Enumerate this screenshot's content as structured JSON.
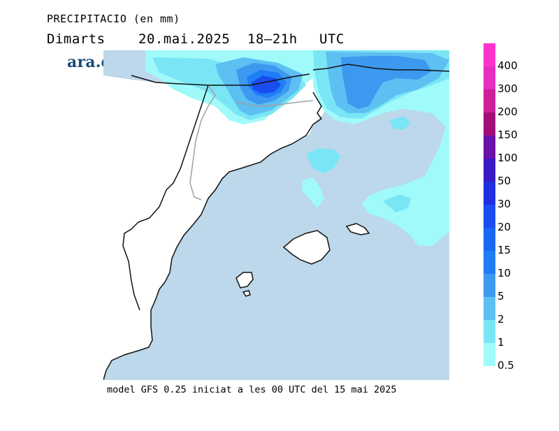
{
  "title": "PRECIPITACIO (en mm)",
  "subtitle": {
    "day": "Dimarts",
    "date": "20.mai.2025",
    "hours": "18–21h",
    "timezone": "UTC"
  },
  "logo": "ara.cat",
  "footer": "model GFS 0.25 iniciat a les 00 UTC del 15 mai 2025",
  "legend": {
    "levels": [
      {
        "label": "400",
        "color": "#ff33cc"
      },
      {
        "label": "300",
        "color": "#e62ebf"
      },
      {
        "label": "200",
        "color": "#cc1f99"
      },
      {
        "label": "150",
        "color": "#a30f7a"
      },
      {
        "label": "100",
        "color": "#6a11a8"
      },
      {
        "label": "50",
        "color": "#3a18c8"
      },
      {
        "label": "30",
        "color": "#1f2fe0"
      },
      {
        "label": "20",
        "color": "#1a4cf0"
      },
      {
        "label": "15",
        "color": "#1a66f5"
      },
      {
        "label": "10",
        "color": "#1f7df5"
      },
      {
        "label": "5",
        "color": "#3d98f0"
      },
      {
        "label": "2",
        "color": "#5cc0f2"
      },
      {
        "label": "1",
        "color": "#7ae6f5"
      },
      {
        "label": "0.5",
        "color": "#a0fafa"
      }
    ]
  },
  "colors": {
    "sea": "#bcd8ea",
    "land": "#ffffff",
    "coastline": "#111111",
    "border": "#a0a0a0"
  }
}
